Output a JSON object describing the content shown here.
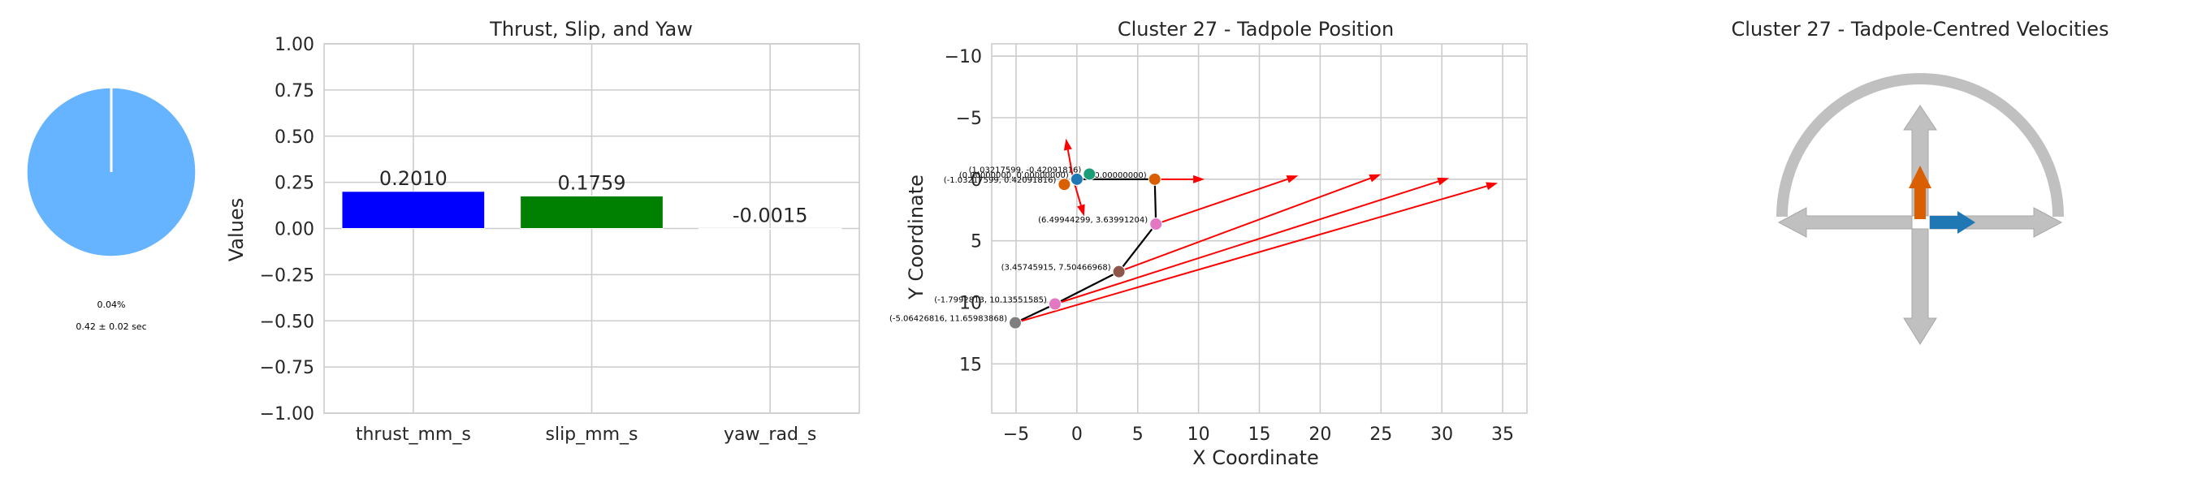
{
  "colors": {
    "pie_main": "#66b3ff",
    "bar_thrust": "#0000ff",
    "bar_slip": "#008000",
    "bar_yaw": "#ff0000",
    "grid": "#cccccc",
    "arrow": "#ff0000",
    "path": "#000000",
    "gauge": "#c0c0c0",
    "arrow_orange": "#d95f02",
    "arrow_blue": "#1f77b4"
  },
  "chart_data": [
    {
      "type": "pie",
      "values": [
        99.96,
        0.04
      ],
      "colors": [
        "#66b3ff",
        "#ffffff"
      ],
      "caption_percent": "0.04%",
      "caption_time": "0.42 ± 0.02 sec"
    },
    {
      "type": "bar",
      "title": "Thrust, Slip, and Yaw",
      "ylabel": "Values",
      "categories": [
        "thrust_mm_s",
        "slip_mm_s",
        "yaw_rad_s"
      ],
      "values": [
        0.201,
        0.1759,
        -0.0015
      ],
      "value_labels": [
        "0.2010",
        "0.1759",
        "-0.0015"
      ],
      "ylim": [
        -1.0,
        1.0
      ],
      "yticks": [
        "1.00",
        "0.75",
        "0.50",
        "0.25",
        "0.00",
        "−0.25",
        "−0.50",
        "−0.75",
        "−1.00"
      ],
      "grid": true
    },
    {
      "type": "scatter",
      "title": "Cluster 27 - Tadpole Position",
      "xlabel": "X Coordinate",
      "ylabel": "Y Coordinate",
      "xlim": [
        -7,
        37
      ],
      "ylim": [
        19,
        -11
      ],
      "xticks": [
        "−5",
        "0",
        "5",
        "10",
        "15",
        "20",
        "25",
        "30",
        "35"
      ],
      "yticks": [
        "−10",
        "−5",
        "0",
        "5",
        "10",
        "15"
      ],
      "grid": true,
      "points": [
        {
          "x": -5.06426816,
          "y": 11.65983868,
          "color": "#7f7f7f",
          "label": "(-5.06426816, 11.65983868)"
        },
        {
          "x": -1.7992813,
          "y": 10.13551585,
          "color": "#e377c2",
          "label": "(-1.7992813, 10.13551585)"
        },
        {
          "x": 3.45745915,
          "y": 7.50466968,
          "color": "#8c564b",
          "label": "(3.45745915, 7.50466968)"
        },
        {
          "x": 6.49944299,
          "y": 3.63991204,
          "color": "#e377c2",
          "label": "(6.49944299, 3.63991204)"
        },
        {
          "x": 6.4,
          "y": 0.0,
          "color": "#d95f02",
          "label": "0.00000000)"
        },
        {
          "x": 1.03217599,
          "y": -0.42091816,
          "color": "#1b9e77",
          "label": "(1.03217599, -0.42091816)"
        },
        {
          "x": -1.03217599,
          "y": 0.42091816,
          "color": "#d95f02",
          "label": "(-1.03217599, 0.42091816)"
        },
        {
          "x": 0.0,
          "y": 0.0,
          "color": "#1f77b4",
          "label": "(0.00000000, 0.00000000)"
        }
      ],
      "path": [
        [
          0,
          0
        ],
        [
          6.4,
          0
        ],
        [
          6.5,
          3.64
        ],
        [
          3.46,
          7.5
        ],
        [
          -1.8,
          10.14
        ],
        [
          -5.06,
          11.66
        ]
      ],
      "arrows": [
        {
          "x0": 6.4,
          "y0": 0,
          "x1": 10.5,
          "y1": 0
        },
        {
          "x0": 6.5,
          "y0": 3.64,
          "x1": 18.2,
          "y1": -0.3
        },
        {
          "x0": 3.46,
          "y0": 7.5,
          "x1": 25.0,
          "y1": -0.4
        },
        {
          "x0": -1.8,
          "y0": 10.14,
          "x1": 30.6,
          "y1": -0.1
        },
        {
          "x0": -5.06,
          "y0": 11.66,
          "x1": 34.6,
          "y1": 0.3
        },
        {
          "x0": -0.3,
          "y0": 0,
          "x1": -0.9,
          "y1": -3.3
        },
        {
          "x0": -0.3,
          "y0": 0,
          "x1": 0.6,
          "y1": 3.0
        }
      ]
    },
    {
      "type": "gauge",
      "title": "Cluster 27 - Tadpole-Centred Velocities"
    }
  ]
}
